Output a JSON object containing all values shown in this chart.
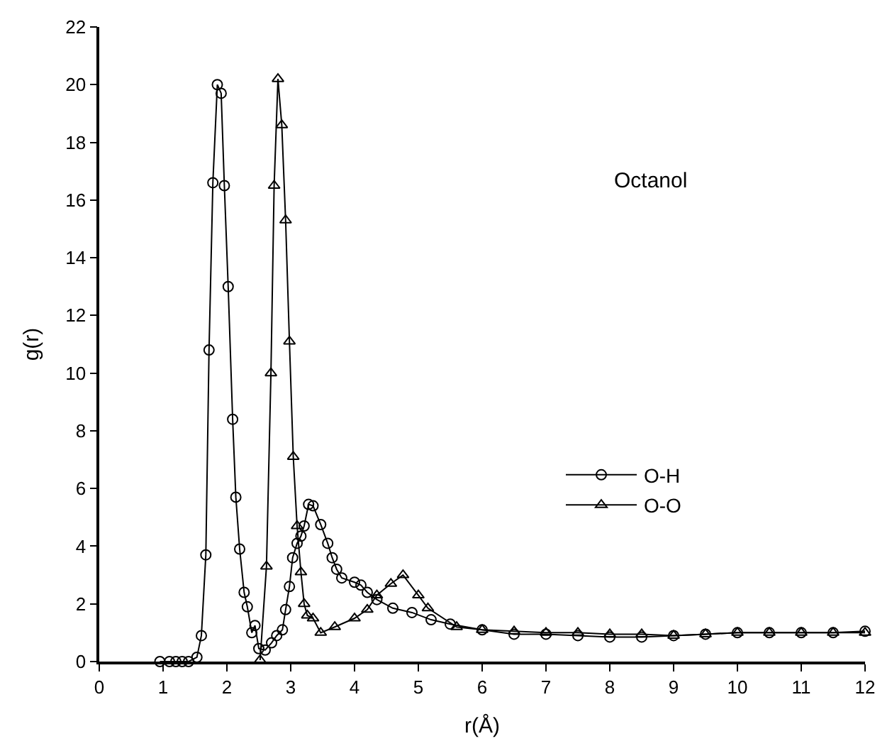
{
  "chart_data": {
    "type": "line",
    "xlabel": "r(Å)",
    "ylabel": "g(r)",
    "annotations": [
      "Octanol"
    ],
    "series": [
      {
        "name": "O-H",
        "color": "#000000",
        "marker": "circle",
        "x": [
          0.95,
          1.1,
          1.2,
          1.3,
          1.4,
          1.53,
          1.6,
          1.67,
          1.72,
          1.78,
          1.85,
          1.91,
          1.96,
          2.02,
          2.09,
          2.14,
          2.2,
          2.27,
          2.32,
          2.39,
          2.44,
          2.5,
          2.6,
          2.7,
          2.78,
          2.87,
          2.92,
          2.98,
          3.03,
          3.1,
          3.16,
          3.21,
          3.28,
          3.35,
          3.47,
          3.58,
          3.65,
          3.72,
          3.8,
          4.0,
          4.1,
          4.2,
          4.35,
          4.6,
          4.9,
          5.2,
          5.5,
          6.0,
          6.5,
          7.0,
          7.5,
          8.0,
          8.5,
          9.0,
          9.5,
          10.0,
          10.5,
          11.0,
          11.5,
          12.0
        ],
        "values": [
          0,
          0,
          0,
          0,
          0,
          0.15,
          0.9,
          3.7,
          10.8,
          16.6,
          20.0,
          19.7,
          16.5,
          13.0,
          8.4,
          5.7,
          3.9,
          2.4,
          1.9,
          1.0,
          1.25,
          0.45,
          0.4,
          0.65,
          0.9,
          1.1,
          1.8,
          2.6,
          3.6,
          4.1,
          4.35,
          4.7,
          5.45,
          5.4,
          4.75,
          4.1,
          3.6,
          3.2,
          2.9,
          2.75,
          2.65,
          2.4,
          2.15,
          1.85,
          1.7,
          1.45,
          1.3,
          1.1,
          0.95,
          0.95,
          0.9,
          0.85,
          0.85,
          0.9,
          0.95,
          1.0,
          1.0,
          1.0,
          1.0,
          1.05
        ]
      },
      {
        "name": "O-O",
        "color": "#000000",
        "marker": "triangle",
        "x": [
          2.52,
          2.62,
          2.69,
          2.74,
          2.8,
          2.86,
          2.92,
          2.98,
          3.04,
          3.1,
          3.16,
          3.21,
          3.26,
          3.35,
          3.47,
          3.69,
          4.0,
          4.2,
          4.35,
          4.57,
          4.76,
          5.0,
          5.15,
          5.6,
          6.0,
          6.5,
          7.0,
          7.5,
          8.0,
          8.5,
          9.0,
          9.5,
          10.0,
          10.5,
          11.0,
          11.5,
          12.0
        ],
        "values": [
          0.05,
          3.3,
          10.0,
          16.5,
          20.2,
          18.6,
          15.3,
          11.1,
          7.1,
          4.7,
          3.1,
          2.0,
          1.6,
          1.5,
          1.0,
          1.2,
          1.5,
          1.8,
          2.3,
          2.7,
          3.0,
          2.3,
          1.85,
          1.2,
          1.1,
          1.05,
          1.0,
          1.0,
          0.95,
          0.95,
          0.9,
          0.95,
          1.0,
          1.0,
          1.0,
          1.0,
          1.0
        ]
      }
    ],
    "xlim": [
      0,
      12
    ],
    "xticks": [
      0,
      1,
      2,
      3,
      4,
      5,
      6,
      7,
      8,
      9,
      10,
      11,
      12
    ],
    "ylim": [
      0,
      22
    ],
    "yticks": [
      0,
      2,
      4,
      6,
      8,
      10,
      12,
      14,
      16,
      18,
      20,
      22
    ],
    "legend": "right",
    "line_style": "solid"
  }
}
